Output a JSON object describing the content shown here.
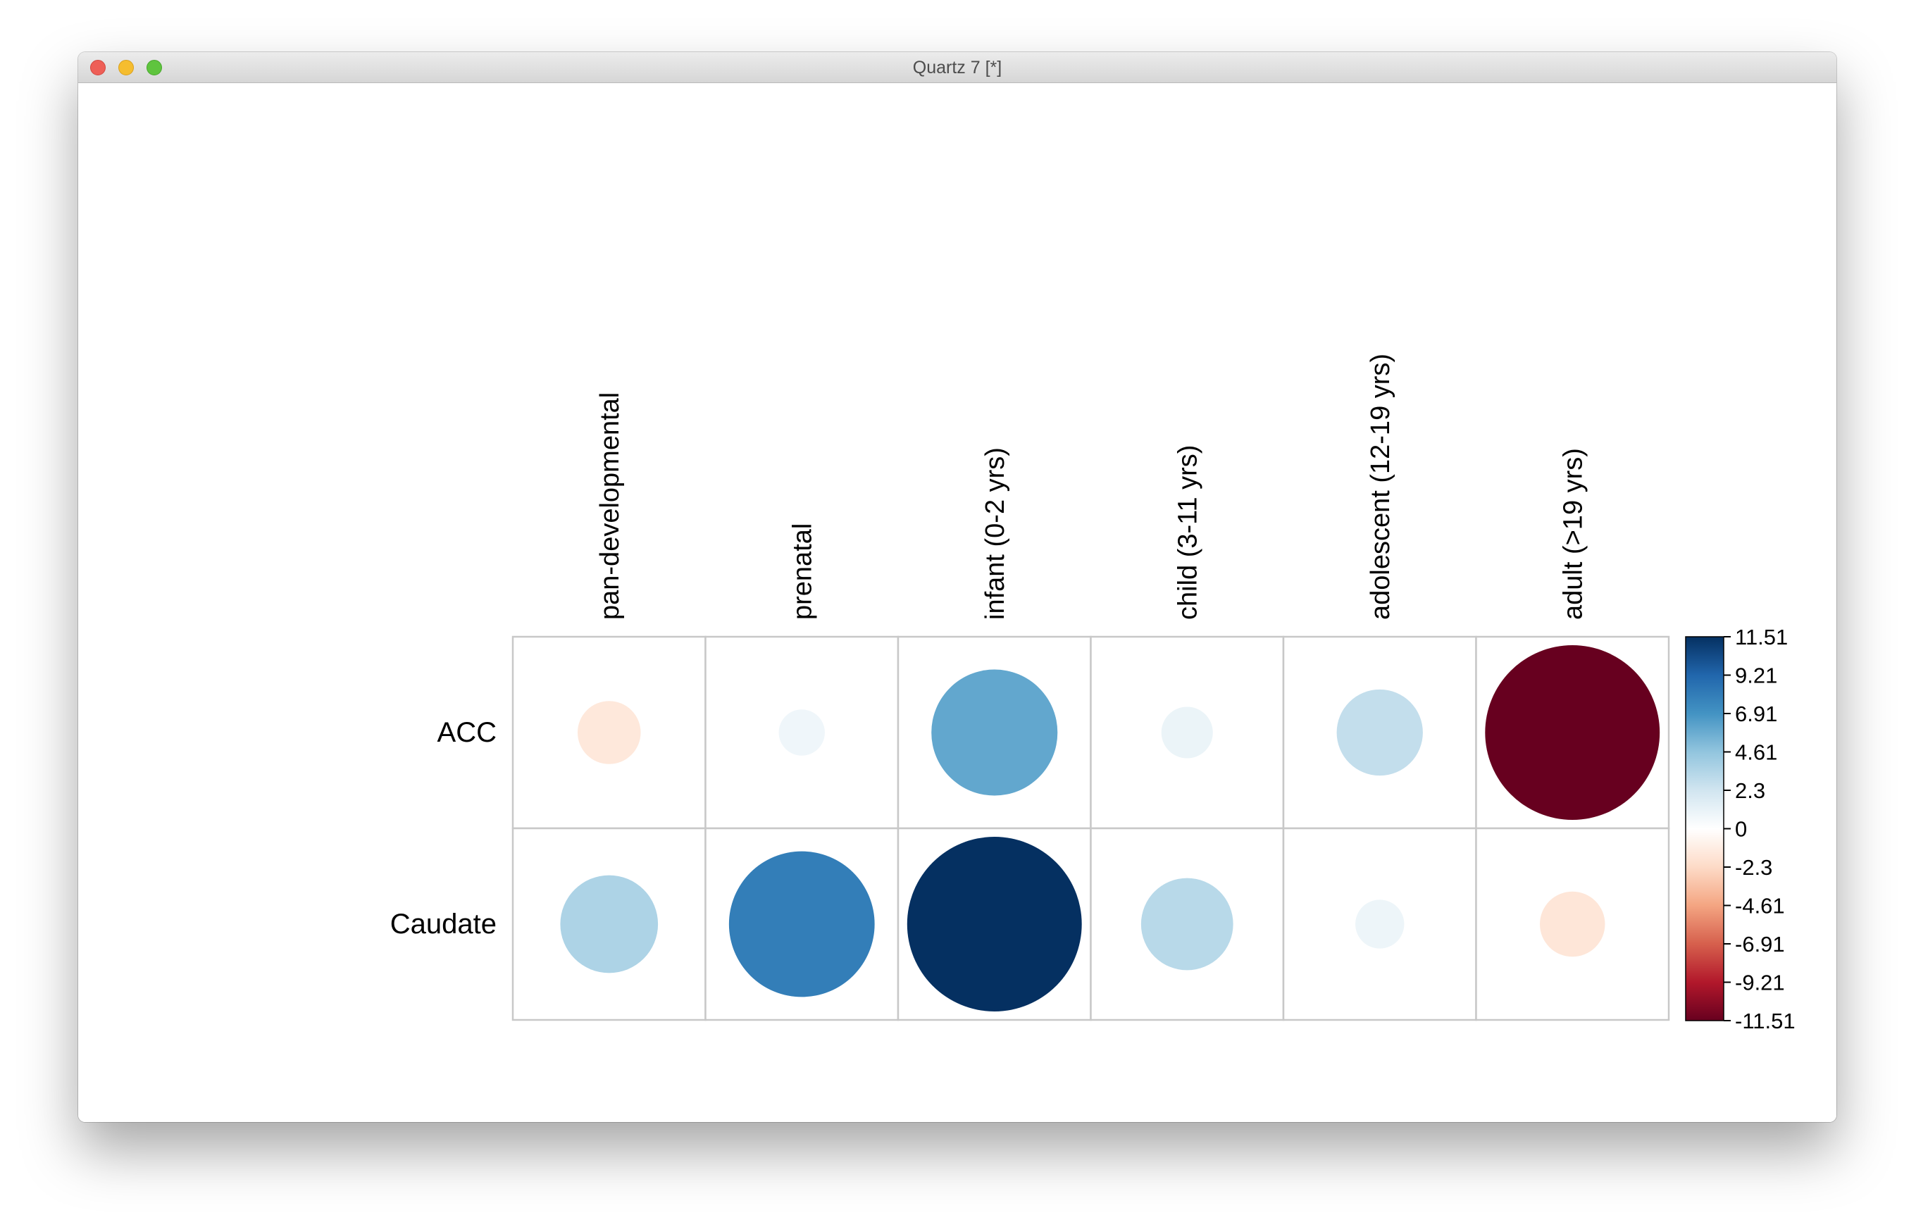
{
  "window": {
    "title": "Quartz 7 [*]"
  },
  "chart_data": {
    "type": "heatmap",
    "style": "circle correlation plot (corrplot)",
    "rows": [
      "ACC",
      "Caudate"
    ],
    "columns": [
      "pan-developmental",
      "prenatal",
      "infant (0-2 yrs)",
      "child (3-11 yrs)",
      "adolescent (12-19 yrs)",
      "adult (>19 yrs)"
    ],
    "values": [
      [
        -1.5,
        0.8,
        6.0,
        1.0,
        2.8,
        -11.5
      ],
      [
        3.6,
        8.0,
        11.5,
        3.2,
        0.9,
        -1.6
      ]
    ],
    "color_scale": {
      "min": -11.51,
      "max": 11.51,
      "labels": [
        "11.51",
        "9.21",
        "6.91",
        "4.61",
        "2.3",
        "0",
        "-2.3",
        "-4.61",
        "-6.91",
        "-9.21",
        "-11.51"
      ],
      "colors_high_to_low": [
        "#053061",
        "#2166ac",
        "#4393c3",
        "#92c5de",
        "#d1e5f0",
        "#ffffff",
        "#fddbc7",
        "#f4a582",
        "#d6604d",
        "#b2182b",
        "#67001f"
      ]
    },
    "grid_color": "#c8c8c8",
    "legend_placement": "right"
  }
}
